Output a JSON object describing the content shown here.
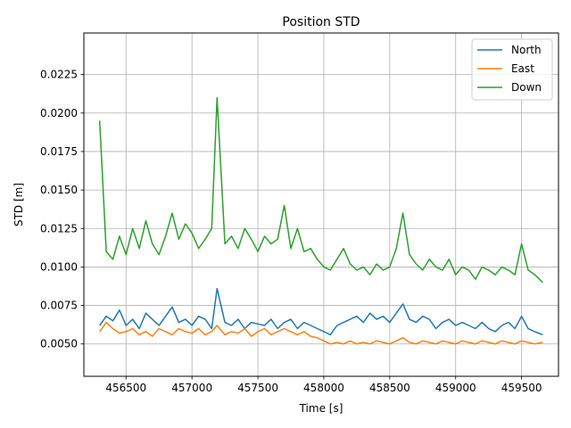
{
  "chart_data": {
    "type": "line",
    "title": "Position STD",
    "xlabel": "Time [s]",
    "ylabel": "STD [m]",
    "xlim": [
      456180,
      459780
    ],
    "ylim": [
      0.0029,
      0.0252
    ],
    "xticks": [
      456500,
      457000,
      457500,
      458000,
      458500,
      459000,
      459500
    ],
    "yticks": [
      0.005,
      0.0075,
      0.01,
      0.0125,
      0.015,
      0.0175,
      0.02,
      0.0225
    ],
    "xtick_labels": [
      "456500",
      "457000",
      "457500",
      "458000",
      "458500",
      "459000",
      "459500"
    ],
    "ytick_labels": [
      "0.0050",
      "0.0075",
      "0.0100",
      "0.0125",
      "0.0150",
      "0.0175",
      "0.0200",
      "0.0225"
    ],
    "grid": true,
    "legend_position": "top-right",
    "series": [
      {
        "name": "North",
        "color": "#1f77b4",
        "x": [
          456300,
          456350,
          456400,
          456450,
          456500,
          456550,
          456600,
          456650,
          456700,
          456750,
          456800,
          456850,
          456900,
          456950,
          457000,
          457050,
          457100,
          457150,
          457190,
          457250,
          457300,
          457350,
          457400,
          457450,
          457500,
          457550,
          457600,
          457650,
          457700,
          457750,
          457800,
          457850,
          457900,
          457950,
          458000,
          458050,
          458100,
          458150,
          458200,
          458250,
          458300,
          458350,
          458400,
          458450,
          458500,
          458550,
          458600,
          458650,
          458700,
          458750,
          458800,
          458850,
          458900,
          458950,
          459000,
          459050,
          459100,
          459150,
          459200,
          459250,
          459300,
          459350,
          459400,
          459450,
          459500,
          459550,
          459600,
          459660
        ],
        "y": [
          0.0062,
          0.0068,
          0.0065,
          0.0072,
          0.0062,
          0.0066,
          0.006,
          0.007,
          0.0066,
          0.0062,
          0.0068,
          0.0074,
          0.0064,
          0.0066,
          0.0062,
          0.0068,
          0.0066,
          0.006,
          0.0086,
          0.0064,
          0.0062,
          0.0066,
          0.006,
          0.0064,
          0.0063,
          0.0062,
          0.0066,
          0.006,
          0.0064,
          0.0066,
          0.006,
          0.0064,
          0.0062,
          0.006,
          0.0058,
          0.0056,
          0.0062,
          0.0064,
          0.0066,
          0.0068,
          0.0064,
          0.007,
          0.0066,
          0.0068,
          0.0064,
          0.007,
          0.0076,
          0.0066,
          0.0064,
          0.0068,
          0.0066,
          0.006,
          0.0064,
          0.0066,
          0.0062,
          0.0064,
          0.0062,
          0.006,
          0.0064,
          0.006,
          0.0058,
          0.0062,
          0.0064,
          0.006,
          0.0068,
          0.006,
          0.0058,
          0.0056
        ]
      },
      {
        "name": "East",
        "color": "#ff7f0e",
        "x": [
          456300,
          456350,
          456400,
          456450,
          456500,
          456550,
          456600,
          456650,
          456700,
          456750,
          456800,
          456850,
          456900,
          456950,
          457000,
          457050,
          457100,
          457150,
          457190,
          457250,
          457300,
          457350,
          457400,
          457450,
          457500,
          457550,
          457600,
          457650,
          457700,
          457750,
          457800,
          457850,
          457900,
          457950,
          458000,
          458050,
          458100,
          458150,
          458200,
          458250,
          458300,
          458350,
          458400,
          458450,
          458500,
          458550,
          458600,
          458650,
          458700,
          458750,
          458800,
          458850,
          458900,
          458950,
          459000,
          459050,
          459100,
          459150,
          459200,
          459250,
          459300,
          459350,
          459400,
          459450,
          459500,
          459550,
          459600,
          459660
        ],
        "y": [
          0.0058,
          0.0064,
          0.006,
          0.0057,
          0.0058,
          0.006,
          0.0056,
          0.0058,
          0.0055,
          0.006,
          0.0058,
          0.0056,
          0.006,
          0.0058,
          0.0057,
          0.006,
          0.0056,
          0.0058,
          0.0062,
          0.0056,
          0.0058,
          0.0057,
          0.006,
          0.0055,
          0.0058,
          0.006,
          0.0056,
          0.0058,
          0.006,
          0.0058,
          0.0056,
          0.0058,
          0.0055,
          0.0054,
          0.0052,
          0.005,
          0.0051,
          0.005,
          0.0052,
          0.005,
          0.0051,
          0.005,
          0.0052,
          0.0051,
          0.005,
          0.0052,
          0.0054,
          0.0051,
          0.005,
          0.0052,
          0.0051,
          0.005,
          0.0052,
          0.0051,
          0.005,
          0.0052,
          0.0051,
          0.005,
          0.0052,
          0.0051,
          0.005,
          0.0052,
          0.0051,
          0.005,
          0.0052,
          0.0051,
          0.005,
          0.0051
        ]
      },
      {
        "name": "Down",
        "color": "#2ca02c",
        "x": [
          456300,
          456350,
          456400,
          456450,
          456500,
          456550,
          456600,
          456650,
          456700,
          456750,
          456800,
          456850,
          456900,
          456950,
          457000,
          457050,
          457100,
          457150,
          457190,
          457250,
          457300,
          457350,
          457400,
          457450,
          457500,
          457550,
          457600,
          457650,
          457700,
          457750,
          457800,
          457850,
          457900,
          457950,
          458000,
          458050,
          458100,
          458150,
          458200,
          458250,
          458300,
          458350,
          458400,
          458450,
          458500,
          458550,
          458600,
          458650,
          458700,
          458750,
          458800,
          458850,
          458900,
          458950,
          459000,
          459050,
          459100,
          459150,
          459200,
          459250,
          459300,
          459350,
          459400,
          459450,
          459500,
          459550,
          459600,
          459660
        ],
        "y": [
          0.0195,
          0.011,
          0.0105,
          0.012,
          0.0108,
          0.0125,
          0.0112,
          0.013,
          0.0115,
          0.0108,
          0.012,
          0.0135,
          0.0118,
          0.0128,
          0.0122,
          0.0112,
          0.0118,
          0.0125,
          0.021,
          0.0115,
          0.012,
          0.0112,
          0.0125,
          0.0118,
          0.011,
          0.012,
          0.0115,
          0.0118,
          0.014,
          0.0112,
          0.0125,
          0.011,
          0.0112,
          0.0105,
          0.01,
          0.0098,
          0.0105,
          0.0112,
          0.0102,
          0.0098,
          0.01,
          0.0095,
          0.0102,
          0.0098,
          0.01,
          0.0112,
          0.0135,
          0.0108,
          0.0102,
          0.0098,
          0.0105,
          0.01,
          0.0098,
          0.0105,
          0.0095,
          0.01,
          0.0098,
          0.0092,
          0.01,
          0.0098,
          0.0095,
          0.01,
          0.0098,
          0.0095,
          0.0115,
          0.0098,
          0.0095,
          0.009
        ]
      }
    ]
  }
}
